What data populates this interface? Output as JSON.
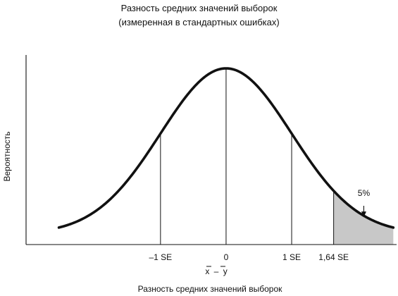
{
  "chart_data": {
    "type": "area",
    "title": "Разность средних значений выборок",
    "subtitle": "(измеренная в стандартных ошибках)",
    "ylabel": "Вероятность",
    "xlabel": "Разность средних значений выборок",
    "x_symbol_left": "x",
    "x_symbol_op": "–",
    "x_symbol_right": "y",
    "xlim": [
      -3.05,
      2.6
    ],
    "ylim": [
      0,
      1
    ],
    "distribution": "normal",
    "curve_x_range": [
      -2.55,
      2.55
    ],
    "ticks": [
      {
        "x": -1,
        "label": "–1 SE"
      },
      {
        "x": 0,
        "label": "0"
      },
      {
        "x": 1,
        "label": "1 SE"
      },
      {
        "x": 1.64,
        "label": "1,64 SE"
      }
    ],
    "shaded_region": {
      "from": 1.64,
      "to": 2.55,
      "color": "#c8c8c8"
    },
    "annotation": {
      "text": "5%",
      "x": 2.1
    }
  }
}
